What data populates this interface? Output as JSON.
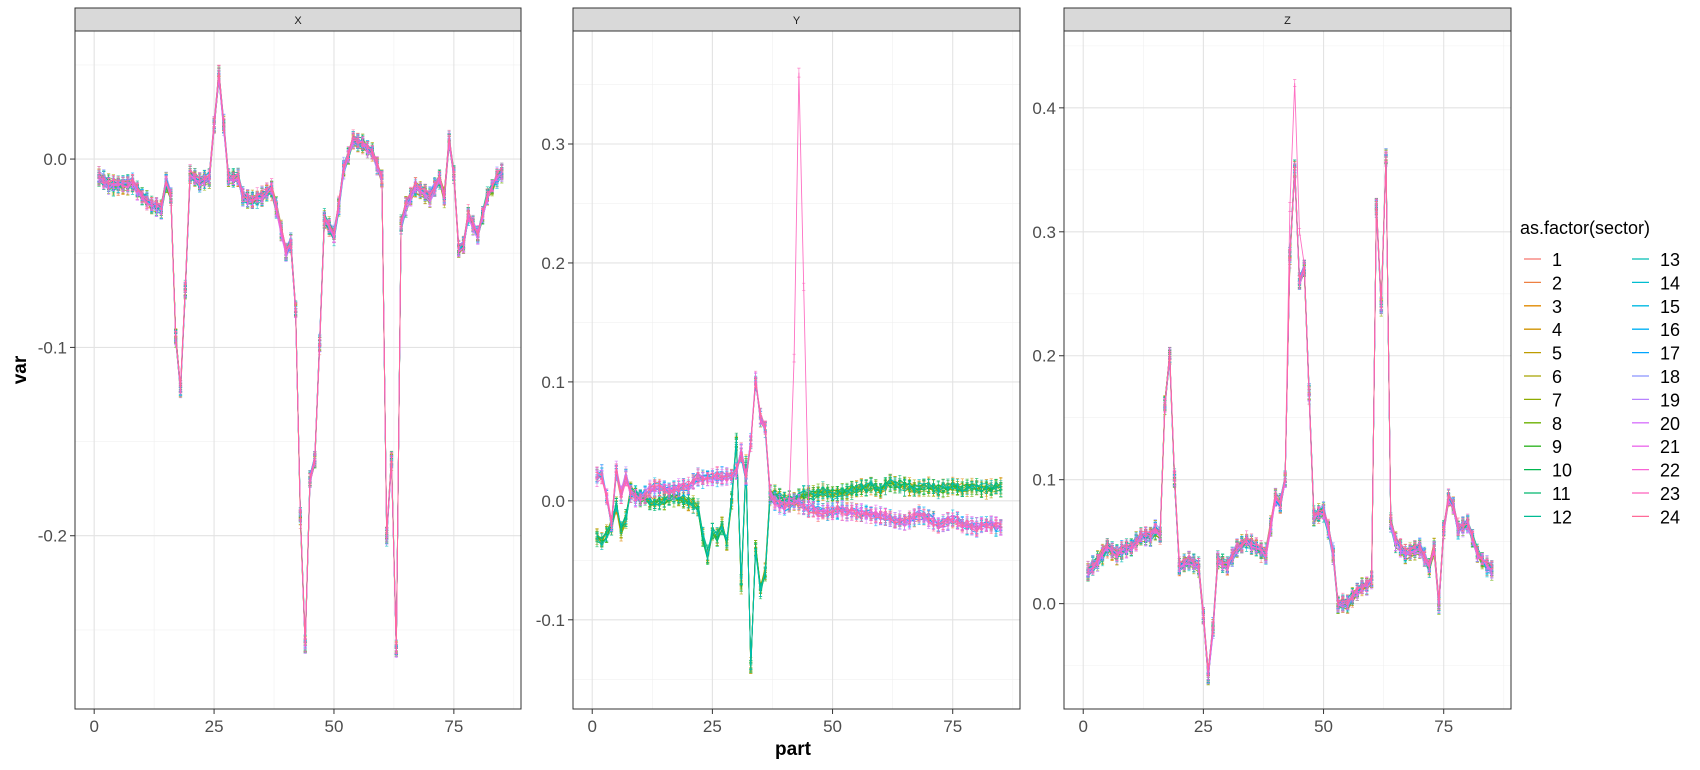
{
  "chart_data": {
    "type": "line",
    "figure": {
      "xlabel": "part",
      "ylabel": "var",
      "legend_title": "as.factor(sector)",
      "legend_position": "right",
      "grid": true,
      "error_bars": true
    },
    "series_names": [
      "1",
      "2",
      "3",
      "4",
      "5",
      "6",
      "7",
      "8",
      "9",
      "10",
      "11",
      "12",
      "13",
      "14",
      "15",
      "16",
      "17",
      "18",
      "19",
      "20",
      "21",
      "22",
      "23",
      "24"
    ],
    "series_colors": [
      "#F8766D",
      "#EE8042",
      "#E18A00",
      "#D19300",
      "#BE9C00",
      "#A8A400",
      "#8EAB00",
      "#6BB100",
      "#31B425",
      "#00B74F",
      "#00B86E",
      "#00BB93",
      "#00BEB5",
      "#00BDD0",
      "#00B9E3",
      "#00B1F4",
      "#00A5FF",
      "#8A94FF",
      "#B882FF",
      "#D874FD",
      "#EB6CEB",
      "#F863D5",
      "#FE61BC",
      "#FF6A98"
    ],
    "x_ticks": [
      0,
      25,
      50,
      75
    ],
    "panels": [
      {
        "strip": "X",
        "xlim": [
          -4,
          89
        ],
        "ylim": [
          -0.292,
          0.068
        ],
        "y_ticks": [
          0.0,
          -0.1,
          -0.2
        ],
        "y_tick_labels": [
          "0.0",
          "-0.1",
          "-0.2"
        ],
        "base_profile": [
          [
            1,
            -0.01
          ],
          [
            3,
            -0.013
          ],
          [
            5,
            -0.014
          ],
          [
            8,
            -0.013
          ],
          [
            10,
            -0.02
          ],
          [
            12,
            -0.024
          ],
          [
            14,
            -0.026
          ],
          [
            15,
            -0.012
          ],
          [
            16,
            -0.02
          ],
          [
            17,
            -0.095
          ],
          [
            18,
            -0.122
          ],
          [
            19,
            -0.07
          ],
          [
            20,
            -0.008
          ],
          [
            22,
            -0.012
          ],
          [
            24,
            -0.01
          ],
          [
            25,
            0.018
          ],
          [
            26,
            0.044
          ],
          [
            27,
            0.018
          ],
          [
            28,
            -0.01
          ],
          [
            30,
            -0.01
          ],
          [
            31,
            -0.02
          ],
          [
            33,
            -0.022
          ],
          [
            35,
            -0.02
          ],
          [
            37,
            -0.016
          ],
          [
            38,
            -0.026
          ],
          [
            40,
            -0.05
          ],
          [
            41,
            -0.045
          ],
          [
            42,
            -0.08
          ],
          [
            43,
            -0.19
          ],
          [
            44,
            -0.258
          ],
          [
            45,
            -0.17
          ],
          [
            46,
            -0.16
          ],
          [
            47,
            -0.098
          ],
          [
            48,
            -0.032
          ],
          [
            50,
            -0.04
          ],
          [
            51,
            -0.025
          ],
          [
            52,
            -0.005
          ],
          [
            54,
            0.01
          ],
          [
            56,
            0.008
          ],
          [
            58,
            0.003
          ],
          [
            59,
            -0.003
          ],
          [
            60,
            -0.01
          ],
          [
            61,
            -0.2
          ],
          [
            62,
            -0.16
          ],
          [
            63,
            -0.26
          ],
          [
            64,
            -0.035
          ],
          [
            65,
            -0.025
          ],
          [
            67,
            -0.015
          ],
          [
            70,
            -0.02
          ],
          [
            72,
            -0.01
          ],
          [
            73,
            -0.02
          ],
          [
            74,
            0.01
          ],
          [
            75,
            -0.008
          ],
          [
            76,
            -0.048
          ],
          [
            77,
            -0.045
          ],
          [
            78,
            -0.03
          ],
          [
            80,
            -0.04
          ],
          [
            82,
            -0.02
          ],
          [
            84,
            -0.01
          ],
          [
            86,
            -0.004
          ]
        ]
      },
      {
        "strip": "Y",
        "xlim": [
          -4,
          89
        ],
        "ylim": [
          -0.175,
          0.395
        ],
        "y_ticks": [
          0.3,
          0.2,
          0.1,
          0.0,
          -0.1
        ],
        "y_tick_labels": [
          "0.3",
          "0.2",
          "0.1",
          "0.0",
          "-0.1"
        ],
        "group_a": [
          [
            1,
            0.02
          ],
          [
            2,
            0.022
          ],
          [
            3,
            0.005
          ],
          [
            4,
            -0.02
          ],
          [
            5,
            0.025
          ],
          [
            6,
            0.005
          ],
          [
            7,
            0.02
          ],
          [
            8,
            0.005
          ],
          [
            10,
            0.002
          ],
          [
            12,
            0.01
          ],
          [
            14,
            0.012
          ],
          [
            16,
            0.008
          ],
          [
            18,
            0.01
          ],
          [
            20,
            0.012
          ],
          [
            22,
            0.02
          ],
          [
            24,
            0.018
          ],
          [
            26,
            0.02
          ],
          [
            28,
            0.02
          ],
          [
            30,
            0.025
          ],
          [
            31,
            0.04
          ],
          [
            32,
            0.02
          ],
          [
            33,
            0.05
          ],
          [
            34,
            0.1
          ],
          [
            35,
            0.07
          ],
          [
            36,
            0.06
          ],
          [
            37,
            0.005
          ],
          [
            38,
            0.0
          ],
          [
            40,
            -0.005
          ],
          [
            42,
            0.0
          ],
          [
            44,
            -0.005
          ],
          [
            46,
            -0.008
          ],
          [
            48,
            -0.01
          ],
          [
            50,
            -0.008
          ],
          [
            52,
            -0.008
          ],
          [
            55,
            -0.01
          ],
          [
            58,
            -0.012
          ],
          [
            60,
            -0.012
          ],
          [
            62,
            -0.015
          ],
          [
            65,
            -0.018
          ],
          [
            68,
            -0.012
          ],
          [
            70,
            -0.015
          ],
          [
            72,
            -0.02
          ],
          [
            75,
            -0.015
          ],
          [
            78,
            -0.02
          ],
          [
            80,
            -0.022
          ],
          [
            82,
            -0.02
          ],
          [
            85,
            -0.022
          ]
        ],
        "group_b": [
          [
            1,
            -0.03
          ],
          [
            2,
            -0.035
          ],
          [
            3,
            -0.028
          ],
          [
            4,
            -0.02
          ],
          [
            5,
            -0.005
          ],
          [
            6,
            -0.025
          ],
          [
            7,
            -0.015
          ],
          [
            8,
            0.01
          ],
          [
            10,
            0.002
          ],
          [
            12,
            0.0
          ],
          [
            14,
            0.0
          ],
          [
            16,
            0.002
          ],
          [
            18,
            0.002
          ],
          [
            20,
            0.0
          ],
          [
            22,
            -0.005
          ],
          [
            23,
            -0.03
          ],
          [
            24,
            -0.045
          ],
          [
            25,
            -0.025
          ],
          [
            26,
            -0.03
          ],
          [
            27,
            -0.02
          ],
          [
            28,
            -0.035
          ],
          [
            29,
            0.0
          ],
          [
            30,
            0.05
          ],
          [
            31,
            -0.07
          ],
          [
            32,
            0.03
          ],
          [
            33,
            -0.14
          ],
          [
            34,
            -0.04
          ],
          [
            35,
            -0.075
          ],
          [
            36,
            -0.06
          ],
          [
            37,
            0.005
          ],
          [
            38,
            0.005
          ],
          [
            40,
            0.0
          ],
          [
            42,
            0.0
          ],
          [
            44,
            0.005
          ],
          [
            46,
            0.005
          ],
          [
            48,
            0.008
          ],
          [
            50,
            0.005
          ],
          [
            52,
            0.008
          ],
          [
            55,
            0.01
          ],
          [
            58,
            0.012
          ],
          [
            60,
            0.01
          ],
          [
            62,
            0.015
          ],
          [
            65,
            0.012
          ],
          [
            68,
            0.01
          ],
          [
            70,
            0.012
          ],
          [
            72,
            0.01
          ],
          [
            75,
            0.012
          ],
          [
            78,
            0.01
          ],
          [
            80,
            0.012
          ],
          [
            82,
            0.01
          ],
          [
            85,
            0.012
          ]
        ],
        "spike": {
          "series": "23",
          "points": [
            [
              41,
              0.0
            ],
            [
              42,
              0.12
            ],
            [
              43,
              0.36
            ],
            [
              44,
              0.18
            ],
            [
              45,
              0.0
            ]
          ]
        }
      },
      {
        "strip": "Z",
        "xlim": [
          -4,
          89
        ],
        "ylim": [
          -0.085,
          0.462
        ],
        "y_ticks": [
          0.4,
          0.3,
          0.2,
          0.1,
          0.0
        ],
        "y_tick_labels": [
          "0.4",
          "0.3",
          "0.2",
          "0.1",
          "0.0"
        ],
        "base_profile": [
          [
            1,
            0.025
          ],
          [
            3,
            0.035
          ],
          [
            5,
            0.045
          ],
          [
            7,
            0.04
          ],
          [
            9,
            0.045
          ],
          [
            10,
            0.045
          ],
          [
            12,
            0.055
          ],
          [
            14,
            0.055
          ],
          [
            15,
            0.06
          ],
          [
            16,
            0.055
          ],
          [
            17,
            0.16
          ],
          [
            18,
            0.2
          ],
          [
            19,
            0.1
          ],
          [
            20,
            0.03
          ],
          [
            22,
            0.035
          ],
          [
            24,
            0.03
          ],
          [
            25,
            -0.01
          ],
          [
            26,
            -0.058
          ],
          [
            27,
            -0.02
          ],
          [
            28,
            0.035
          ],
          [
            30,
            0.03
          ],
          [
            32,
            0.045
          ],
          [
            34,
            0.05
          ],
          [
            36,
            0.045
          ],
          [
            38,
            0.04
          ],
          [
            40,
            0.085
          ],
          [
            41,
            0.08
          ],
          [
            42,
            0.1
          ],
          [
            43,
            0.28
          ],
          [
            44,
            0.35
          ],
          [
            45,
            0.26
          ],
          [
            46,
            0.27
          ],
          [
            47,
            0.17
          ],
          [
            48,
            0.07
          ],
          [
            50,
            0.075
          ],
          [
            51,
            0.06
          ],
          [
            52,
            0.04
          ],
          [
            53,
            0.0
          ],
          [
            55,
            0.0
          ],
          [
            57,
            0.01
          ],
          [
            59,
            0.015
          ],
          [
            60,
            0.02
          ],
          [
            61,
            0.32
          ],
          [
            62,
            0.24
          ],
          [
            63,
            0.36
          ],
          [
            64,
            0.065
          ],
          [
            65,
            0.05
          ],
          [
            67,
            0.04
          ],
          [
            70,
            0.045
          ],
          [
            72,
            0.03
          ],
          [
            73,
            0.045
          ],
          [
            74,
            0.0
          ],
          [
            75,
            0.06
          ],
          [
            76,
            0.085
          ],
          [
            77,
            0.08
          ],
          [
            78,
            0.06
          ],
          [
            80,
            0.065
          ],
          [
            82,
            0.04
          ],
          [
            84,
            0.03
          ],
          [
            86,
            0.025
          ]
        ],
        "spike": {
          "series": "23",
          "points": [
            [
              43,
              0.32
            ],
            [
              44,
              0.42
            ],
            [
              45,
              0.3
            ]
          ]
        }
      }
    ]
  }
}
